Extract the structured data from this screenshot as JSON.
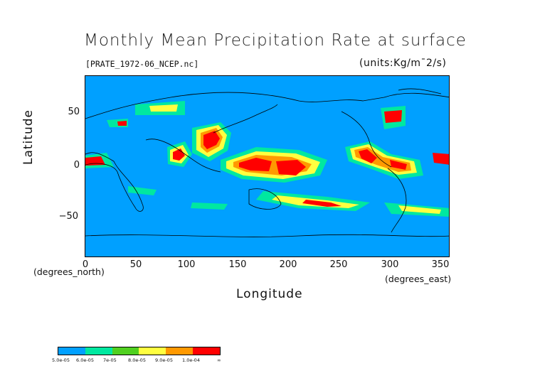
{
  "title": "Monthly Mean Precipitation Rate at surface",
  "file_label": "[PRATE_1972-06_NCEP.nc]",
  "units_label": "(units:Kg/m¯2/s)",
  "ylabel": "Latitude",
  "xlabel": "Longitude",
  "ylabel_units": "(degrees_north)",
  "xlabel_units": "(degrees_east)",
  "y_ticks": [
    "50",
    "0",
    "−50"
  ],
  "x_ticks": [
    "0",
    "50",
    "100",
    "150",
    "200",
    "250",
    "300",
    "350"
  ],
  "colors": {
    "ocean_base": "#00a0ff",
    "level1": "#00e8a0",
    "level2": "#50d020",
    "level3": "#ffff40",
    "level4": "#ff9900",
    "level5": "#ff0000"
  },
  "legend": {
    "labels": [
      "5.0e-05",
      "6.0e-05",
      "7e-05",
      "8.0e-05",
      "9.0e-05",
      "1.0e-04",
      "∞"
    ],
    "swatch_colors": [
      "#00a0ff",
      "#00e8a0",
      "#50d020",
      "#ffff40",
      "#ff9900",
      "#ff0000"
    ]
  },
  "map": {
    "lon_range": [
      0,
      360
    ],
    "lat_range": [
      -90,
      90
    ]
  }
}
